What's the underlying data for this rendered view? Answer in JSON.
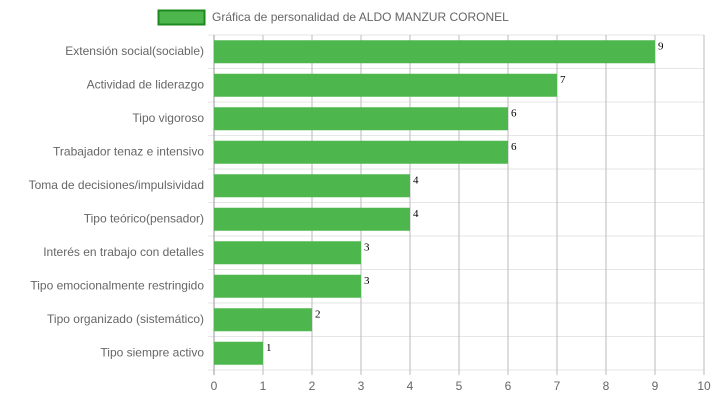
{
  "chart_data": {
    "type": "hbar",
    "categories": [
      "Extensión social(sociable)",
      "Actividad de liderazgo",
      "Tipo vigoroso",
      "Trabajador tenaz e intensivo",
      "Toma de decisiones/impulsividad",
      "Tipo teórico(pensador)",
      "Interés en trabajo con detalles",
      "Tipo emocionalmente restringido",
      "Tipo organizado (sistemático)",
      "Tipo siempre activo"
    ],
    "series": [
      {
        "name": "Gráfica de personalidad de ALDO MANZUR CORONEL",
        "color": "#4db74d",
        "values": [
          9,
          7,
          6,
          6,
          4,
          4,
          3,
          3,
          2,
          1
        ]
      }
    ],
    "xlim": [
      0,
      10
    ],
    "xticks": [
      0,
      1,
      2,
      3,
      4,
      5,
      6,
      7,
      8,
      9,
      10
    ],
    "grid": true,
    "legend": "top"
  }
}
